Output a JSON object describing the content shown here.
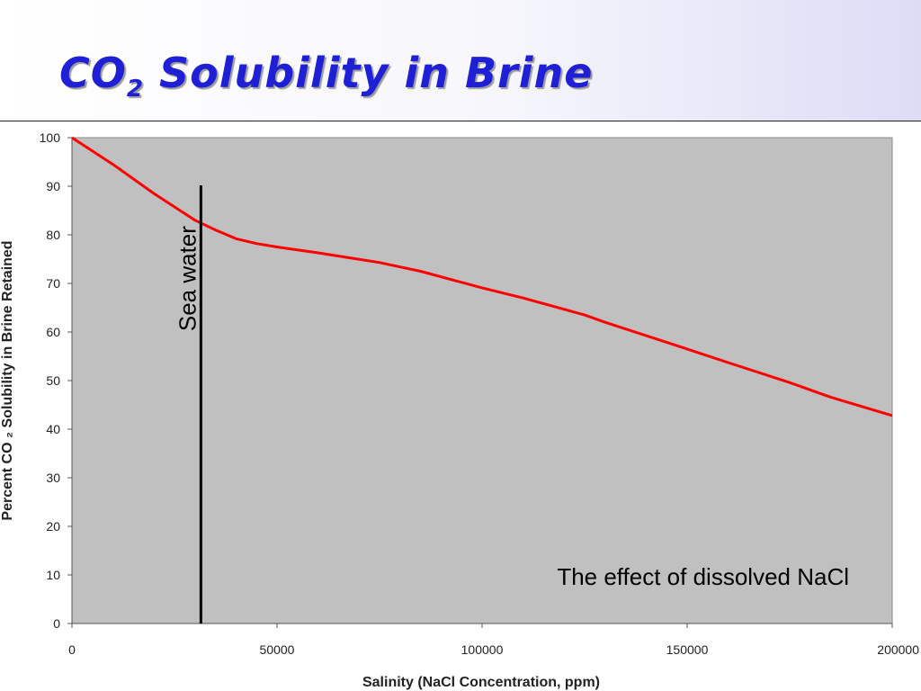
{
  "slide": {
    "title_main": "CO",
    "title_sub": "2",
    "title_rest": " Solubility in Brine",
    "title_color": "#1f1fd6"
  },
  "chart_data": {
    "type": "line",
    "xlabel": "Salinity (NaCl Concentration, ppm)",
    "ylabel": "Percent CO ₂ Solubility in Brine Retained",
    "xlim": [
      0,
      200000
    ],
    "ylim": [
      0,
      100
    ],
    "x_ticks": [
      "0",
      "50000",
      "100000",
      "150000",
      "200000"
    ],
    "y_ticks": [
      "0",
      "10",
      "20",
      "30",
      "40",
      "50",
      "60",
      "70",
      "80",
      "90",
      "100"
    ],
    "grid": false,
    "legend": "none",
    "plot_bg_color": "#c0c0c0",
    "series": [
      {
        "color": "#ff0000",
        "x": [
          0,
          10000,
          20000,
          30000,
          35000,
          40000,
          45000,
          50000,
          60000,
          75000,
          85000,
          100000,
          110000,
          125000,
          130000,
          150000,
          160000,
          175000,
          185000,
          200000
        ],
        "y": [
          100,
          94.5,
          88.5,
          83,
          81,
          79.2,
          78.2,
          77.5,
          76.3,
          74.3,
          72.5,
          69.1,
          67,
          63.5,
          62,
          56.5,
          53.7,
          49.6,
          46.6,
          42.8
        ]
      }
    ],
    "reference_line": {
      "x": 31000,
      "label": "Sea water",
      "color": "#000000"
    },
    "annotation": "The effect of dissolved NaCl"
  }
}
